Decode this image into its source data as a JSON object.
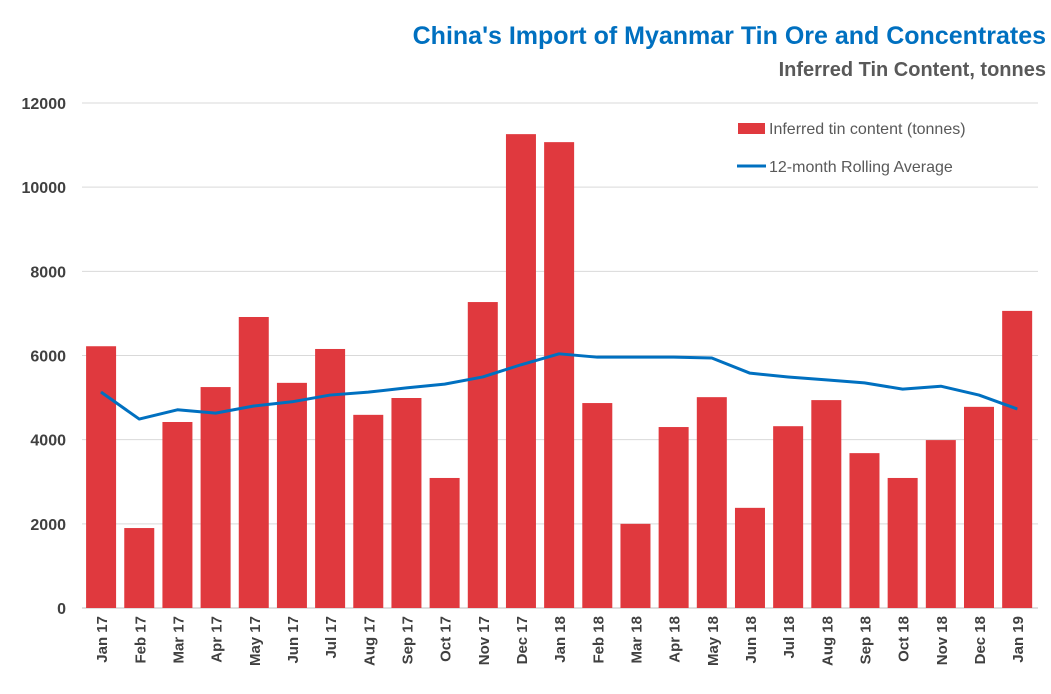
{
  "chart_data": {
    "type": "bar",
    "title": "China's Import of Myanmar Tin Ore and Concentrates",
    "subtitle": "Inferred Tin Content, tonnes",
    "xlabel": "",
    "ylabel": "",
    "ylim": [
      0,
      12000
    ],
    "yticks": [
      "0",
      "2000",
      "4000",
      "6000",
      "8000",
      "10000",
      "12000"
    ],
    "grid": true,
    "legend_position": "top-right",
    "categories": [
      "Jan 17",
      "Feb 17",
      "Mar 17",
      "Apr 17",
      "May 17",
      "Jun 17",
      "Jul 17",
      "Aug 17",
      "Sep 17",
      "Oct 17",
      "Nov 17",
      "Dec 17",
      "Jan 18",
      "Feb 18",
      "Mar 18",
      "Apr 18",
      "May 18",
      "Jun 18",
      "Jul 18",
      "Aug 18",
      "Sep 18",
      "Oct 18",
      "Nov 18",
      "Dec 18",
      "Jan 19"
    ],
    "series": [
      {
        "name": "Inferred tin content (tonnes)",
        "type": "bar",
        "color": "#E0393E",
        "values": [
          6220,
          1900,
          4420,
          5250,
          6915,
          5350,
          6155,
          4590,
          4990,
          3090,
          7270,
          11260,
          11070,
          4870,
          2000,
          4300,
          5010,
          2380,
          4320,
          4940,
          3680,
          3090,
          3990,
          4780,
          7060
        ]
      },
      {
        "name": "12-month Rolling Average",
        "type": "line",
        "color": "#0070C0",
        "values": [
          5130,
          4490,
          4710,
          4630,
          4800,
          4900,
          5060,
          5130,
          5230,
          5320,
          5490,
          5780,
          6040,
          5960,
          5960,
          5960,
          5940,
          5580,
          5490,
          5420,
          5350,
          5200,
          5270,
          5060,
          4730
        ]
      }
    ]
  }
}
